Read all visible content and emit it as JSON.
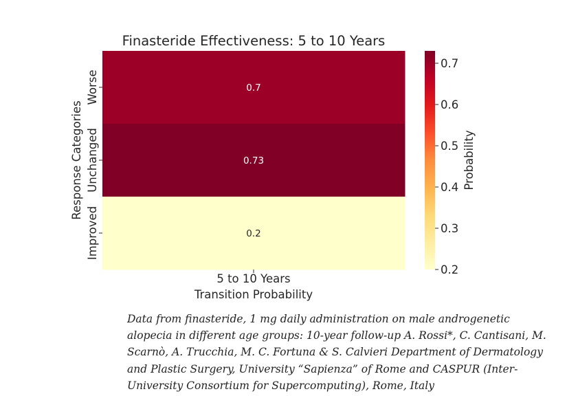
{
  "chart_data": {
    "type": "heatmap",
    "title": "Finasteride Effectiveness: 5 to 10 Years",
    "xlabel": "Transition Probability",
    "ylabel": "Response Categories",
    "x_categories": [
      "5 to 10 Years"
    ],
    "y_categories": [
      "Worse",
      "Unchanged",
      "Improved"
    ],
    "values": [
      [
        0.7
      ],
      [
        0.73
      ],
      [
        0.2
      ]
    ],
    "value_labels": [
      "0.7",
      "0.73",
      "0.2"
    ],
    "colorbar": {
      "label": "Probability",
      "range": [
        0.2,
        0.73
      ],
      "ticks": [
        0.2,
        0.3,
        0.4,
        0.5,
        0.6,
        0.7
      ],
      "tick_labels": [
        "0.2",
        "0.3",
        "0.4",
        "0.5",
        "0.6",
        "0.7"
      ],
      "colormap": "YlOrRd",
      "color_stops": [
        "#ffffcc",
        "#ffeda0",
        "#fed976",
        "#feb24c",
        "#fd8d3c",
        "#fc4e2a",
        "#e31a1c",
        "#bd0026",
        "#800026"
      ]
    }
  },
  "caption": "Data from finasteride, 1 mg daily administration on male androgenetic alopecia in different age groups: 10-year follow-up A. Rossi*, C. Cantisani, M. Scarnò, A. Trucchia, M. C. Fortuna & S. Calvieri Department of Dermatology and Plastic Surgery, University “Sapienza” of Rome and CASPUR (Inter-University Consortium for Supercomputing), Rome, Italy"
}
